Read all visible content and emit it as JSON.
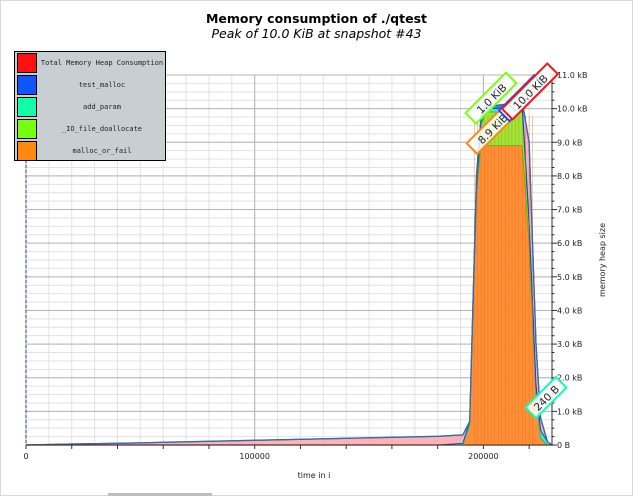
{
  "chart_data": {
    "type": "area",
    "title": "Memory consumption of ./qtest",
    "subtitle": "Peak of 10.0 KiB at snapshot #43",
    "xlabel": "time in i",
    "ylabel": "memory heap size",
    "xlim": [
      0,
      230000
    ],
    "ylim": [
      0,
      11
    ],
    "x_ticks": [
      {
        "value": 0,
        "label": "0"
      },
      {
        "value": 100000,
        "label": "100000"
      },
      {
        "value": 200000,
        "label": "200000"
      }
    ],
    "y_ticks": [
      {
        "value": 0,
        "label": "0 B"
      },
      {
        "value": 1,
        "label": "1.0 kB"
      },
      {
        "value": 2,
        "label": "2.0 kB"
      },
      {
        "value": 3,
        "label": "3.0 kB"
      },
      {
        "value": 4,
        "label": "4.0 kB"
      },
      {
        "value": 5,
        "label": "5.0 kB"
      },
      {
        "value": 6,
        "label": "6.0 kB"
      },
      {
        "value": 7,
        "label": "7.0 kB"
      },
      {
        "value": 8,
        "label": "8.0 kB"
      },
      {
        "value": 9,
        "label": "9.0 kB"
      },
      {
        "value": 10,
        "label": "10.0 kB"
      },
      {
        "value": 11,
        "label": "11.0 kB"
      }
    ],
    "legend_position": "top-left",
    "series": [
      {
        "name": "Total Memory Heap Consumption",
        "color": "#ff1111"
      },
      {
        "name": "test_malloc",
        "color": "#1155ff"
      },
      {
        "name": "add_param",
        "color": "#11ffaa"
      },
      {
        "name": "_IO_file_doallocate",
        "color": "#77ff11"
      },
      {
        "name": "malloc_or_fail",
        "color": "#ff8811"
      }
    ],
    "stack_points": [
      {
        "x": 0,
        "malloc_or_fail": 0,
        "IO": 0,
        "add_param": 0,
        "test_malloc": 0,
        "total": 0.0
      },
      {
        "x": 20000,
        "malloc_or_fail": 0,
        "IO": 0,
        "add_param": 0,
        "test_malloc": 0,
        "total": 0.03
      },
      {
        "x": 40000,
        "malloc_or_fail": 0,
        "IO": 0,
        "add_param": 0,
        "test_malloc": 0,
        "total": 0.05
      },
      {
        "x": 60000,
        "malloc_or_fail": 0,
        "IO": 0,
        "add_param": 0,
        "test_malloc": 0,
        "total": 0.08
      },
      {
        "x": 80000,
        "malloc_or_fail": 0,
        "IO": 0,
        "add_param": 0,
        "test_malloc": 0,
        "total": 0.11
      },
      {
        "x": 100000,
        "malloc_or_fail": 0,
        "IO": 0,
        "add_param": 0,
        "test_malloc": 0,
        "total": 0.14
      },
      {
        "x": 120000,
        "malloc_or_fail": 0,
        "IO": 0,
        "add_param": 0,
        "test_malloc": 0,
        "total": 0.17
      },
      {
        "x": 140000,
        "malloc_or_fail": 0,
        "IO": 0,
        "add_param": 0,
        "test_malloc": 0,
        "total": 0.2
      },
      {
        "x": 160000,
        "malloc_or_fail": 0,
        "IO": 0,
        "add_param": 0,
        "test_malloc": 0,
        "total": 0.23
      },
      {
        "x": 180000,
        "malloc_or_fail": 0,
        "IO": 0,
        "add_param": 0,
        "test_malloc": 0,
        "total": 0.26
      },
      {
        "x": 191000,
        "malloc_or_fail": 0,
        "IO": 0,
        "add_param": 0.05,
        "test_malloc": 0,
        "total": 0.3
      },
      {
        "x": 194000,
        "malloc_or_fail": 0.6,
        "IO": 0,
        "add_param": 0.1,
        "test_malloc": 0,
        "total": 0.7
      },
      {
        "x": 197000,
        "malloc_or_fail": 7.5,
        "IO": 0,
        "add_param": 0.1,
        "test_malloc": 0.05,
        "total": 8.0
      },
      {
        "x": 199000,
        "malloc_or_fail": 9.0,
        "IO": 0.5,
        "add_param": 0.1,
        "test_malloc": 0.1,
        "total": 9.8
      },
      {
        "x": 201000,
        "malloc_or_fail": 8.9,
        "IO": 1.0,
        "add_param": 0.1,
        "test_malloc": 0.1,
        "total": 10.1
      },
      {
        "x": 206000,
        "malloc_or_fail": 8.9,
        "IO": 1.0,
        "add_param": 0.1,
        "test_malloc": 0.1,
        "total": 10.1
      },
      {
        "x": 212000,
        "malloc_or_fail": 8.9,
        "IO": 1.0,
        "add_param": 0.1,
        "test_malloc": 0.12,
        "total": 10.15
      },
      {
        "x": 217000,
        "malloc_or_fail": 8.9,
        "IO": 1.0,
        "add_param": 0.1,
        "test_malloc": 0.12,
        "total": 10.2
      },
      {
        "x": 220000,
        "malloc_or_fail": 6.0,
        "IO": 0.5,
        "add_param": 0.1,
        "test_malloc": 0.12,
        "total": 9.0
      },
      {
        "x": 223000,
        "malloc_or_fail": 1.5,
        "IO": 0,
        "add_param": 0.24,
        "test_malloc": 0.1,
        "total": 3.0
      },
      {
        "x": 225000,
        "malloc_or_fail": 0.2,
        "IO": 0,
        "add_param": 0.24,
        "test_malloc": 0,
        "total": 0.8
      },
      {
        "x": 228000,
        "malloc_or_fail": 0,
        "IO": 0,
        "add_param": 0.1,
        "test_malloc": 0,
        "total": 0.1
      },
      {
        "x": 230000,
        "malloc_or_fail": 0,
        "IO": 0,
        "add_param": 0,
        "test_malloc": 0,
        "total": 0
      }
    ],
    "annotations": [
      {
        "text": "1.0 KiB",
        "x": 203500,
        "y": 10.3,
        "color": "#77ff11"
      },
      {
        "text": "8.9 KiB",
        "x": 204000,
        "y": 9.4,
        "color": "#ff8811"
      },
      {
        "text": "12.0 B",
        "x": 217000,
        "y": 10.3,
        "color": "#1155ff"
      },
      {
        "text": "10.0 KiB",
        "x": 220500,
        "y": 10.5,
        "color": "#ff1111"
      },
      {
        "text": "240 B",
        "x": 227500,
        "y": 1.4,
        "color": "#11ffaa"
      }
    ]
  }
}
